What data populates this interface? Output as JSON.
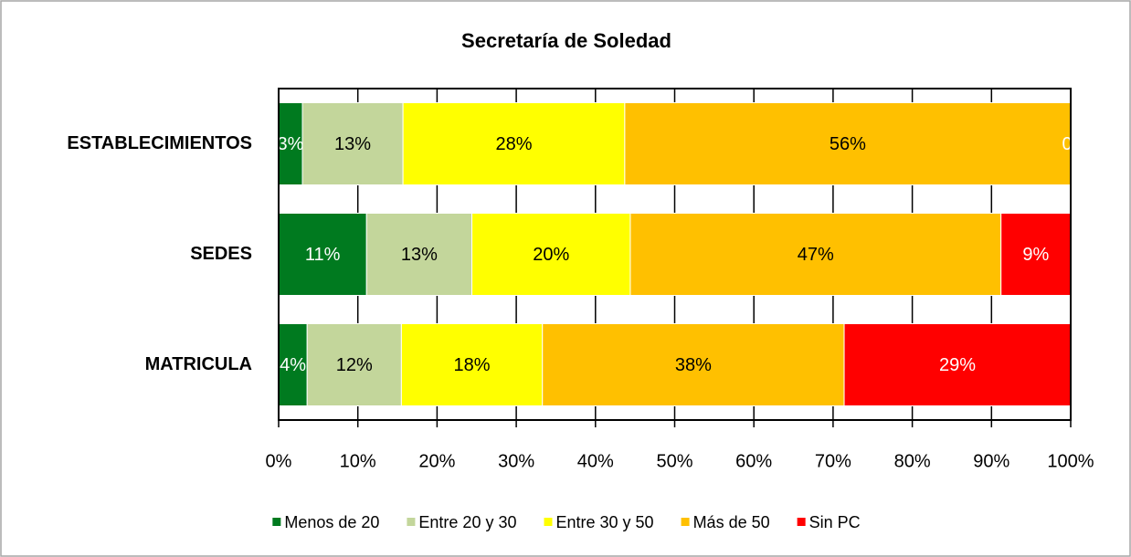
{
  "chart_data": {
    "type": "bar",
    "orientation": "horizontal",
    "stacked": true,
    "title": "Secretaría de Soledad",
    "categories": [
      "ESTABLECIMIENTOS",
      "SEDES",
      "MATRICULA"
    ],
    "series": [
      {
        "name": "Menos de 20",
        "color": "#007a1f",
        "values": [
          3.0,
          11.1,
          3.6
        ],
        "value_labels": [
          "3%",
          "11%",
          "4%"
        ]
      },
      {
        "name": "Entre 20 y 30",
        "color": "#c3d69b",
        "values": [
          12.7,
          13.3,
          11.9
        ],
        "value_labels": [
          "13%",
          "13%",
          "12%"
        ]
      },
      {
        "name": "Entre 30 y 50",
        "color": "#ffff00",
        "values": [
          28.0,
          20.0,
          17.8
        ],
        "value_labels": [
          "28%",
          "20%",
          "18%"
        ]
      },
      {
        "name": "Más de 50",
        "color": "#ffc000",
        "values": [
          56.3,
          46.8,
          38.1
        ],
        "value_labels": [
          "56%",
          "47%",
          "38%"
        ]
      },
      {
        "name": "Sin PC",
        "color": "#ff0000",
        "values": [
          0,
          8.8,
          28.6
        ],
        "value_labels": [
          "0",
          "9%",
          "29%"
        ]
      }
    ],
    "xlim": [
      0,
      100
    ],
    "xticks": [
      {
        "value": 0,
        "label": "0%"
      },
      {
        "value": 10,
        "label": "10%"
      },
      {
        "value": 20,
        "label": "20%"
      },
      {
        "value": 30,
        "label": "30%"
      },
      {
        "value": 40,
        "label": "40%"
      },
      {
        "value": 50,
        "label": "50%"
      },
      {
        "value": 60,
        "label": "60%"
      },
      {
        "value": 70,
        "label": "70%"
      },
      {
        "value": 80,
        "label": "80%"
      },
      {
        "value": 90,
        "label": "90%"
      },
      {
        "value": 100,
        "label": "100%"
      }
    ],
    "grid": true,
    "legend": "bottom"
  }
}
